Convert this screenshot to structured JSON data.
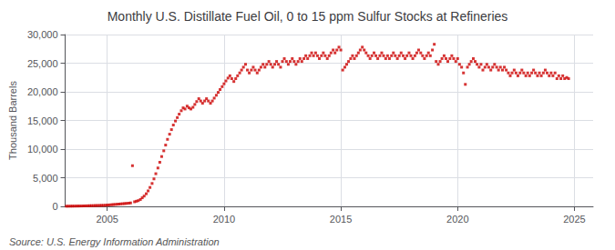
{
  "chart_data": {
    "type": "scatter",
    "title": "Monthly U.S. Distillate Fuel Oil, 0 to 15 ppm Sulfur Stocks at Refineries",
    "ylabel": "Thousand Barrels",
    "annotations": [
      "Source: U.S. Energy Information Administration"
    ],
    "color": "#cc0000",
    "marker": "square",
    "grid": true,
    "xlim": [
      2003.2,
      2025.8
    ],
    "xticks": [
      2005,
      2010,
      2015,
      2020,
      2025
    ],
    "ylim": [
      0,
      30000
    ],
    "yticks": [
      0,
      {
        "value": 5000,
        "label": "5,000"
      },
      {
        "value": 10000,
        "label": "10,000"
      },
      {
        "value": 15000,
        "label": "15,000"
      },
      {
        "value": 20000,
        "label": "20,000"
      },
      {
        "value": 25000,
        "label": "25,000"
      },
      {
        "value": 30000,
        "label": "30,000"
      }
    ],
    "x": [
      2003.25,
      2003.33,
      2003.42,
      2003.5,
      2003.58,
      2003.67,
      2003.75,
      2003.83,
      2003.92,
      2004.0,
      2004.08,
      2004.17,
      2004.25,
      2004.33,
      2004.42,
      2004.5,
      2004.58,
      2004.67,
      2004.75,
      2004.83,
      2004.92,
      2005.0,
      2005.08,
      2005.17,
      2005.25,
      2005.33,
      2005.42,
      2005.5,
      2005.58,
      2005.67,
      2005.75,
      2005.83,
      2005.92,
      2006.0,
      2006.08,
      2006.17,
      2006.25,
      2006.33,
      2006.42,
      2006.5,
      2006.58,
      2006.67,
      2006.75,
      2006.83,
      2006.92,
      2007.0,
      2007.08,
      2007.17,
      2007.25,
      2007.33,
      2007.42,
      2007.5,
      2007.58,
      2007.67,
      2007.75,
      2007.83,
      2007.92,
      2008.0,
      2008.08,
      2008.17,
      2008.25,
      2008.33,
      2008.42,
      2008.5,
      2008.58,
      2008.67,
      2008.75,
      2008.83,
      2008.92,
      2009.0,
      2009.08,
      2009.17,
      2009.25,
      2009.33,
      2009.42,
      2009.5,
      2009.58,
      2009.67,
      2009.75,
      2009.83,
      2009.92,
      2010.0,
      2010.08,
      2010.17,
      2010.25,
      2010.33,
      2010.42,
      2010.5,
      2010.58,
      2010.67,
      2010.75,
      2010.83,
      2010.92,
      2011.0,
      2011.08,
      2011.17,
      2011.25,
      2011.33,
      2011.42,
      2011.5,
      2011.58,
      2011.67,
      2011.75,
      2011.83,
      2011.92,
      2012.0,
      2012.08,
      2012.17,
      2012.25,
      2012.33,
      2012.42,
      2012.5,
      2012.58,
      2012.67,
      2012.75,
      2012.83,
      2012.92,
      2013.0,
      2013.08,
      2013.17,
      2013.25,
      2013.33,
      2013.42,
      2013.5,
      2013.58,
      2013.67,
      2013.75,
      2013.83,
      2013.92,
      2014.0,
      2014.08,
      2014.17,
      2014.25,
      2014.33,
      2014.42,
      2014.5,
      2014.58,
      2014.67,
      2014.75,
      2014.83,
      2014.92,
      2015.0,
      2015.08,
      2015.17,
      2015.25,
      2015.33,
      2015.42,
      2015.5,
      2015.58,
      2015.67,
      2015.75,
      2015.83,
      2015.92,
      2016.0,
      2016.08,
      2016.17,
      2016.25,
      2016.33,
      2016.42,
      2016.5,
      2016.58,
      2016.67,
      2016.75,
      2016.83,
      2016.92,
      2017.0,
      2017.08,
      2017.17,
      2017.25,
      2017.33,
      2017.42,
      2017.5,
      2017.58,
      2017.67,
      2017.75,
      2017.83,
      2017.92,
      2018.0,
      2018.08,
      2018.17,
      2018.25,
      2018.33,
      2018.42,
      2018.5,
      2018.58,
      2018.67,
      2018.75,
      2018.83,
      2018.92,
      2019.0,
      2019.08,
      2019.17,
      2019.25,
      2019.33,
      2019.42,
      2019.5,
      2019.58,
      2019.67,
      2019.75,
      2019.83,
      2019.92,
      2020.0,
      2020.08,
      2020.17,
      2020.25,
      2020.33,
      2020.42,
      2020.5,
      2020.58,
      2020.67,
      2020.75,
      2020.83,
      2020.92,
      2021.0,
      2021.08,
      2021.17,
      2021.25,
      2021.33,
      2021.42,
      2021.5,
      2021.58,
      2021.67,
      2021.75,
      2021.83,
      2021.92,
      2022.0,
      2022.08,
      2022.17,
      2022.25,
      2022.33,
      2022.42,
      2022.5,
      2022.58,
      2022.67,
      2022.75,
      2022.83,
      2022.92,
      2023.0,
      2023.08,
      2023.17,
      2023.25,
      2023.33,
      2023.42,
      2023.5,
      2023.58,
      2023.67,
      2023.75,
      2023.83,
      2023.92,
      2024.0,
      2024.08,
      2024.17,
      2024.25,
      2024.33,
      2024.42,
      2024.5,
      2024.58,
      2024.67,
      2024.75
    ],
    "values": [
      30,
      35,
      40,
      45,
      50,
      55,
      60,
      65,
      70,
      80,
      90,
      100,
      110,
      120,
      130,
      140,
      150,
      160,
      170,
      180,
      200,
      220,
      250,
      280,
      310,
      340,
      370,
      400,
      430,
      460,
      490,
      520,
      560,
      600,
      7100,
      800,
      900,
      1000,
      1200,
      1500,
      1800,
      2200,
      2700,
      3300,
      4000,
      4800,
      5700,
      6700,
      7700,
      8700,
      9700,
      10700,
      11700,
      12600,
      13400,
      14200,
      14900,
      15500,
      16100,
      16700,
      17200,
      17000,
      17500,
      17200,
      17000,
      17300,
      17800,
      18300,
      18800,
      18400,
      18000,
      18400,
      18800,
      18400,
      18000,
      18400,
      18900,
      19400,
      19900,
      20400,
      20900,
      21400,
      21900,
      22400,
      22800,
      22300,
      21800,
      22300,
      22800,
      23300,
      23800,
      24300,
      24800,
      23800,
      23300,
      23800,
      24300,
      23800,
      23300,
      23800,
      24300,
      24800,
      24300,
      24800,
      25300,
      24800,
      24300,
      24800,
      25300,
      24800,
      24300,
      25300,
      25800,
      25300,
      24800,
      25300,
      25800,
      25300,
      24800,
      25300,
      25800,
      25300,
      25800,
      26300,
      25800,
      26300,
      26800,
      26300,
      26800,
      26300,
      25800,
      26300,
      26800,
      26300,
      25800,
      26300,
      26800,
      27300,
      26800,
      27300,
      27800,
      27300,
      23800,
      24300,
      24800,
      25300,
      25800,
      26300,
      25800,
      26300,
      26800,
      27300,
      27800,
      27300,
      26800,
      26300,
      25800,
      26300,
      26800,
      26300,
      25800,
      26300,
      26800,
      26300,
      25800,
      26300,
      25800,
      26300,
      26800,
      26300,
      25800,
      26300,
      26800,
      26300,
      25800,
      26300,
      26800,
      26300,
      25800,
      26300,
      26800,
      27300,
      26800,
      26300,
      25800,
      26300,
      26800,
      26300,
      27300,
      28300,
      25300,
      24800,
      25300,
      25800,
      26300,
      25800,
      25300,
      25800,
      26300,
      25800,
      25300,
      25800,
      24800,
      24300,
      23300,
      21300,
      24300,
      24800,
      25300,
      25800,
      25300,
      24800,
      24300,
      24800,
      23800,
      24300,
      24800,
      24300,
      23800,
      24300,
      24800,
      24300,
      23800,
      24300,
      23800,
      24300,
      23800,
      23300,
      22800,
      23300,
      23800,
      23300,
      22800,
      23300,
      23800,
      23300,
      22800,
      23300,
      22800,
      23300,
      23800,
      23300,
      22800,
      23300,
      22800,
      23300,
      23800,
      23300,
      22800,
      23300,
      22800,
      23300,
      22300,
      22800,
      22300,
      22800,
      22300,
      22500,
      22300
    ]
  }
}
